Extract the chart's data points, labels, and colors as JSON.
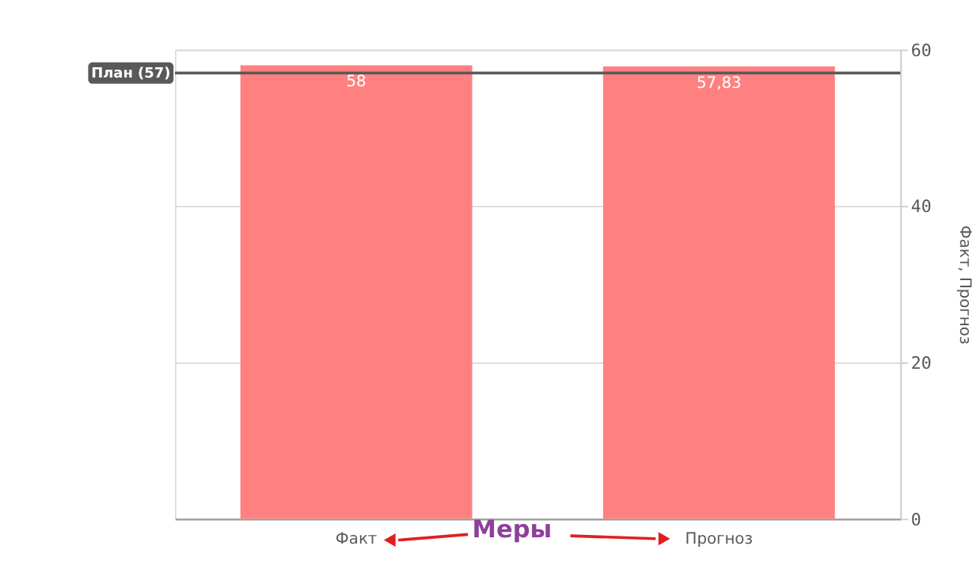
{
  "chart_data": {
    "type": "bar",
    "categories": [
      "Факт",
      "Прогноз"
    ],
    "series": [
      {
        "color": "#ff8080",
        "values": [
          58,
          57.83
        ]
      }
    ],
    "value_labels": [
      "58",
      "57,83"
    ],
    "y2label": "Факт, Прогноз",
    "ylim": [
      0,
      60
    ],
    "yticks": [
      0,
      20,
      40,
      60
    ],
    "grid": "y",
    "ref_lines": [
      {
        "axis": "y",
        "value": 57,
        "label": "План (57)",
        "color": "#595959"
      }
    ],
    "annotations": [
      "Меры"
    ]
  }
}
